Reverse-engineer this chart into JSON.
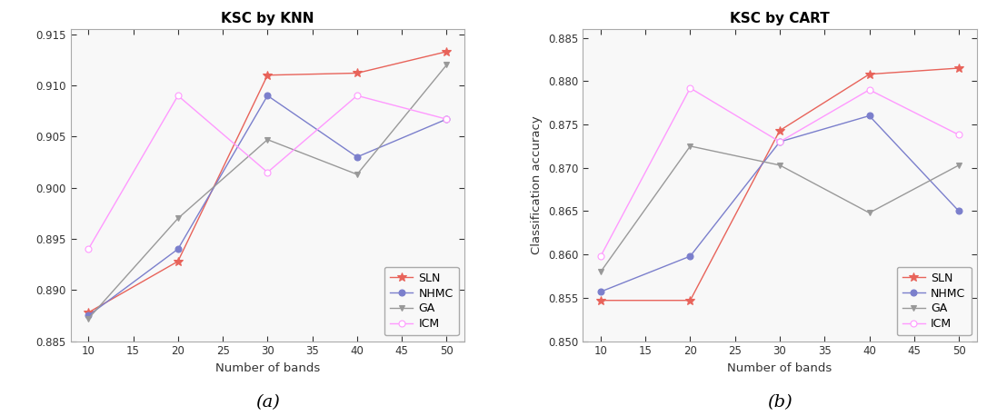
{
  "x": [
    10,
    20,
    30,
    40,
    50
  ],
  "knn": {
    "title": "KSC by KNN",
    "SLN": [
      0.8878,
      0.8928,
      0.911,
      0.9112,
      0.9133
    ],
    "NHMC": [
      0.8875,
      0.894,
      0.909,
      0.903,
      0.9067
    ],
    "GA": [
      0.8872,
      0.897,
      0.9047,
      0.9013,
      0.912
    ],
    "ICM": [
      0.894,
      0.909,
      0.9015,
      0.909,
      0.9067
    ],
    "ylim": [
      0.885,
      0.9155
    ],
    "yticks": [
      0.885,
      0.89,
      0.895,
      0.9,
      0.905,
      0.91,
      0.915
    ],
    "ylabel": ""
  },
  "cart": {
    "title": "KSC by CART",
    "SLN": [
      0.8547,
      0.8547,
      0.8743,
      0.8808,
      0.8815
    ],
    "NHMC": [
      0.8557,
      0.8598,
      0.873,
      0.876,
      0.865
    ],
    "GA": [
      0.858,
      0.8725,
      0.8703,
      0.8648,
      0.8703
    ],
    "ICM": [
      0.8598,
      0.8792,
      0.873,
      0.879,
      0.8738
    ],
    "ylim": [
      0.85,
      0.886
    ],
    "yticks": [
      0.85,
      0.855,
      0.86,
      0.865,
      0.87,
      0.875,
      0.88,
      0.885
    ],
    "ylabel": "Classification accuracy"
  },
  "colors": {
    "SLN": "#E8635A",
    "NHMC": "#7B7FCC",
    "GA": "#999999",
    "ICM": "#FF99FF"
  },
  "marker_colors": {
    "SLN": "#E8635A",
    "NHMC": "#7B7FCC",
    "GA": "#999999",
    "ICM": "#FF99FF"
  },
  "markers": {
    "SLN": "*",
    "NHMC": "o",
    "GA": "v",
    "ICM": "o"
  },
  "xlabel": "Number of bands",
  "caption_a": "(a)",
  "caption_b": "(b)",
  "bg_color": "#f5f5f0",
  "legend_order": [
    "SLN",
    "NHMC",
    "GA",
    "ICM"
  ]
}
